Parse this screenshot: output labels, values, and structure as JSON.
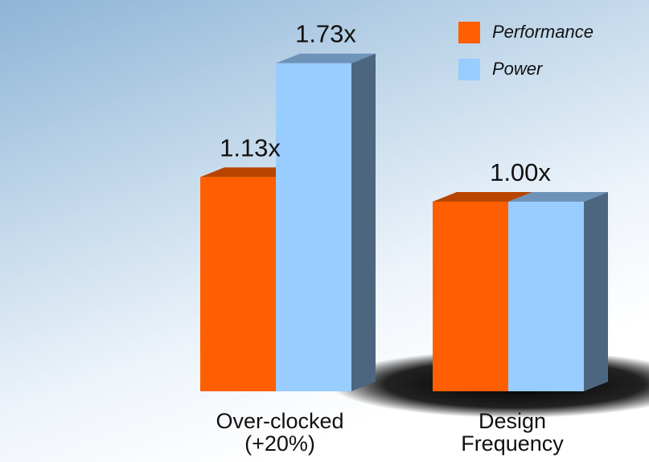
{
  "chart_data": {
    "type": "bar3d",
    "categories": [
      "Over-clocked\n(+20%)",
      "Design\nFrequency"
    ],
    "series": [
      {
        "name": "Performance",
        "color": "#ff5f00",
        "values": [
          1.13,
          1.0
        ],
        "value_labels": [
          "1.13x",
          "1.00x"
        ]
      },
      {
        "name": "Power",
        "color": "#99ccff",
        "values": [
          1.73,
          1.0
        ],
        "value_labels": [
          "1.73x",
          null
        ]
      }
    ],
    "legend": "upper right"
  }
}
